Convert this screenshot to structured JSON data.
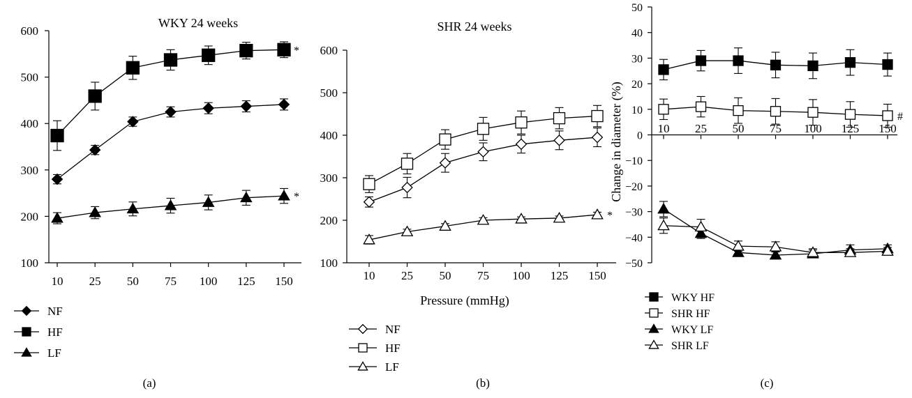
{
  "colors": {
    "ink": "#000000",
    "paper": "#ffffff"
  },
  "chart_data": [
    {
      "type": "line",
      "title": "WKY 24 weeks",
      "panel_label": "(a)",
      "xlabel": "",
      "ylabel": "",
      "categories": [
        "10",
        "25",
        "50",
        "75",
        "100",
        "125",
        "150"
      ],
      "ylim": [
        100,
        600
      ],
      "yticks": [
        "100",
        "200",
        "300",
        "400",
        "500",
        "600"
      ],
      "grid": false,
      "legend_position": "bottom-left",
      "series": [
        {
          "name": "NF",
          "marker": "diamond-filled",
          "values": [
            280,
            343,
            404,
            425,
            433,
            437,
            441
          ],
          "errors": [
            10,
            10,
            10,
            11,
            12,
            12,
            12
          ]
        },
        {
          "name": "HF",
          "marker": "square-filled",
          "values": [
            374,
            459,
            520,
            537,
            547,
            557,
            559
          ],
          "errors": [
            32,
            30,
            25,
            22,
            20,
            18,
            17
          ],
          "annotation": "*"
        },
        {
          "name": "LF",
          "marker": "triangle-filled",
          "values": [
            196,
            208,
            216,
            223,
            230,
            240,
            244
          ],
          "errors": [
            12,
            13,
            15,
            16,
            16,
            16,
            16
          ],
          "annotation": "*"
        }
      ]
    },
    {
      "type": "line",
      "title": "SHR 24 weeks",
      "panel_label": "(b)",
      "xlabel": "Pressure (mmHg)",
      "ylabel": "",
      "categories": [
        "10",
        "25",
        "50",
        "75",
        "100",
        "125",
        "150"
      ],
      "ylim": [
        100,
        600
      ],
      "yticks": [
        "100",
        "200",
        "300",
        "400",
        "500",
        "600"
      ],
      "grid": false,
      "legend_position": "bottom-left",
      "series": [
        {
          "name": "NF",
          "marker": "diamond-open",
          "values": [
            243,
            277,
            335,
            361,
            379,
            388,
            395
          ],
          "errors": [
            12,
            24,
            22,
            21,
            21,
            22,
            22
          ]
        },
        {
          "name": "HF",
          "marker": "square-open",
          "values": [
            285,
            333,
            390,
            415,
            430,
            440,
            445
          ],
          "errors": [
            20,
            24,
            23,
            27,
            27,
            25,
            25
          ]
        },
        {
          "name": "LF",
          "marker": "triangle-open",
          "values": [
            154,
            173,
            186,
            200,
            203,
            205,
            213
          ],
          "errors": [
            10,
            6,
            6,
            6,
            5,
            5,
            6
          ],
          "annotation": "*"
        }
      ]
    },
    {
      "type": "line",
      "title": "",
      "panel_label": "(c)",
      "xlabel": "",
      "ylabel": "Change in diameter (%)",
      "categories": [
        "10",
        "25",
        "50",
        "75",
        "100",
        "125",
        "150"
      ],
      "ylim": [
        -50,
        50
      ],
      "yticks": [
        "50",
        "40",
        "30",
        "20",
        "10",
        "0",
        "−10",
        "−20",
        "−30",
        "−40",
        "−50"
      ],
      "grid": false,
      "legend_position": "bottom-left",
      "series": [
        {
          "name": "WKY HF",
          "marker": "square-filled",
          "values": [
            25.5,
            29,
            29,
            27.3,
            27,
            28.3,
            27.5
          ],
          "errors": [
            4,
            4,
            5,
            5,
            5,
            5,
            4.5
          ]
        },
        {
          "name": "SHR HF",
          "marker": "square-open",
          "values": [
            10,
            11,
            9.5,
            9.2,
            8.8,
            8,
            7.5
          ],
          "errors": [
            4,
            4,
            5,
            5,
            5,
            5,
            4.5
          ],
          "annotation": "#"
        },
        {
          "name": "WKY LF",
          "marker": "triangle-filled",
          "values": [
            -29,
            -38.5,
            -46,
            -47,
            -46.5,
            -45,
            -44.5
          ],
          "errors": [
            3,
            2,
            1.5,
            1.5,
            1.5,
            2,
            1.5
          ]
        },
        {
          "name": "SHR LF",
          "marker": "triangle-open",
          "values": [
            -35.5,
            -36,
            -43.5,
            -43.8,
            -46,
            -46,
            -45.5
          ],
          "errors": [
            3,
            3,
            2,
            2,
            1.5,
            1.5,
            1.5
          ]
        }
      ]
    }
  ]
}
